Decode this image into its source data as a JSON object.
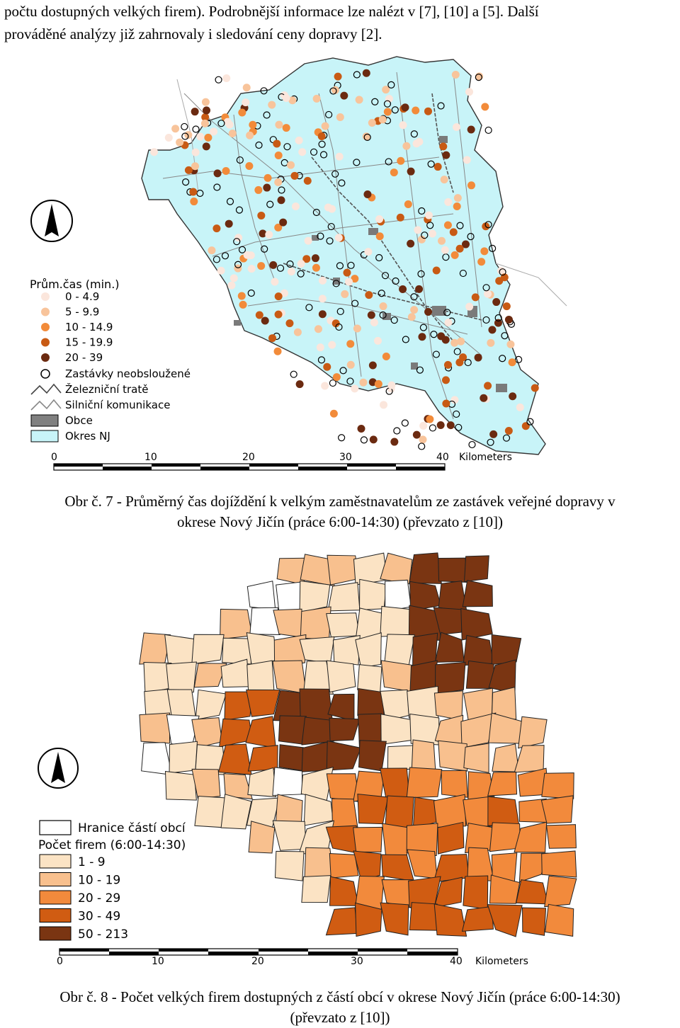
{
  "body_text": {
    "line1": "počtu dostupných velkých firem). Podrobnější informace lze nalézt v [7], [10] a [5]. Další",
    "line2": "prováděné analýzy již zahrnovaly i sledování ceny dopravy [2]."
  },
  "figure7": {
    "caption_line1": "Obr č. 7 - Průměrný čas dojíždění k velkým zaměstnavatelům ze zastávek veřejné dopravy v",
    "caption_line2": "okrese Nový Jičín (práce 6:00-14:30) (převzato z [10])",
    "legend": {
      "title": "Prům.čas (min.)",
      "items": [
        {
          "label": "0 - 4.9",
          "color": "#fbe6dc"
        },
        {
          "label": "5 - 9.9",
          "color": "#f8c49b"
        },
        {
          "label": "10 - 14.9",
          "color": "#f28b3a"
        },
        {
          "label": "15 - 19.9",
          "color": "#c85a14"
        },
        {
          "label": "20 - 39",
          "color": "#6b2a10"
        }
      ],
      "other": [
        {
          "label": "Zastávky neobsloužené",
          "symbol": "hollow-circle"
        },
        {
          "label": "Železniční tratě",
          "symbol": "rail-line"
        },
        {
          "label": "Silniční komunikace",
          "symbol": "road-line"
        },
        {
          "label": "Obce",
          "symbol": "grey-fill",
          "color": "#808080"
        },
        {
          "label": "Okres NJ",
          "symbol": "cyan-fill",
          "color": "#c8f4f8"
        }
      ]
    },
    "scale": {
      "ticks": [
        "0",
        "10",
        "20",
        "30",
        "40"
      ],
      "unit": "Kilometers"
    }
  },
  "figure8": {
    "caption_line1": "Obr č. 8 - Počet velkých firem dostupných z částí obcí v okrese Nový Jičín (práce 6:00-14:30)",
    "caption_line2": "(převzato z [10])",
    "legend": {
      "boundary_label": "Hranice částí obcí",
      "title": "Počet firem (6:00-14:30)",
      "items": [
        {
          "label": "1 - 9",
          "color": "#fbe3c4"
        },
        {
          "label": "10 - 19",
          "color": "#f8c08e"
        },
        {
          "label": "20 - 29",
          "color": "#f28a3c"
        },
        {
          "label": "30 - 49",
          "color": "#d05c12"
        },
        {
          "label": "50 - 213",
          "color": "#7a3512"
        }
      ]
    },
    "scale": {
      "ticks": [
        "0",
        "10",
        "20",
        "30",
        "40"
      ],
      "unit": "Kilometers"
    }
  }
}
